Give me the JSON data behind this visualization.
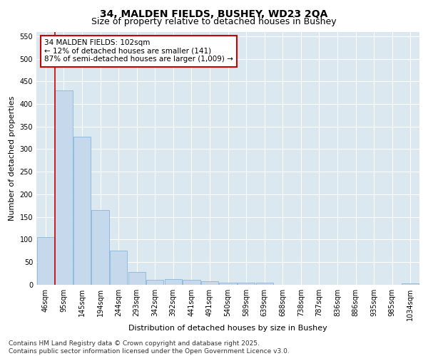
{
  "title_line1": "34, MALDEN FIELDS, BUSHEY, WD23 2QA",
  "title_line2": "Size of property relative to detached houses in Bushey",
  "xlabel": "Distribution of detached houses by size in Bushey",
  "ylabel": "Number of detached properties",
  "bar_labels": [
    "46sqm",
    "95sqm",
    "145sqm",
    "194sqm",
    "244sqm",
    "293sqm",
    "342sqm",
    "392sqm",
    "441sqm",
    "491sqm",
    "540sqm",
    "589sqm",
    "639sqm",
    "688sqm",
    "738sqm",
    "787sqm",
    "836sqm",
    "886sqm",
    "935sqm",
    "985sqm",
    "1034sqm"
  ],
  "bar_values": [
    105,
    430,
    327,
    165,
    75,
    28,
    10,
    12,
    10,
    7,
    4,
    4,
    5,
    0,
    0,
    0,
    0,
    0,
    0,
    0,
    3
  ],
  "bar_color": "#c5d8ec",
  "bar_edge_color": "#7aaed6",
  "vline_color": "#cc0000",
  "vline_position": 0.5,
  "annotation_text": "34 MALDEN FIELDS: 102sqm\n← 12% of detached houses are smaller (141)\n87% of semi-detached houses are larger (1,009) →",
  "annotation_box_facecolor": "#ffffff",
  "annotation_box_edgecolor": "#cc0000",
  "ylim": [
    0,
    560
  ],
  "yticks": [
    0,
    50,
    100,
    150,
    200,
    250,
    300,
    350,
    400,
    450,
    500,
    550
  ],
  "plot_bg_color": "#dce8f0",
  "fig_bg_color": "#ffffff",
  "grid_color": "#ffffff",
  "footer_text": "Contains HM Land Registry data © Crown copyright and database right 2025.\nContains public sector information licensed under the Open Government Licence v3.0.",
  "title_fontsize": 10,
  "subtitle_fontsize": 9,
  "axis_label_fontsize": 8,
  "tick_fontsize": 7,
  "annotation_fontsize": 7.5,
  "footer_fontsize": 6.5
}
